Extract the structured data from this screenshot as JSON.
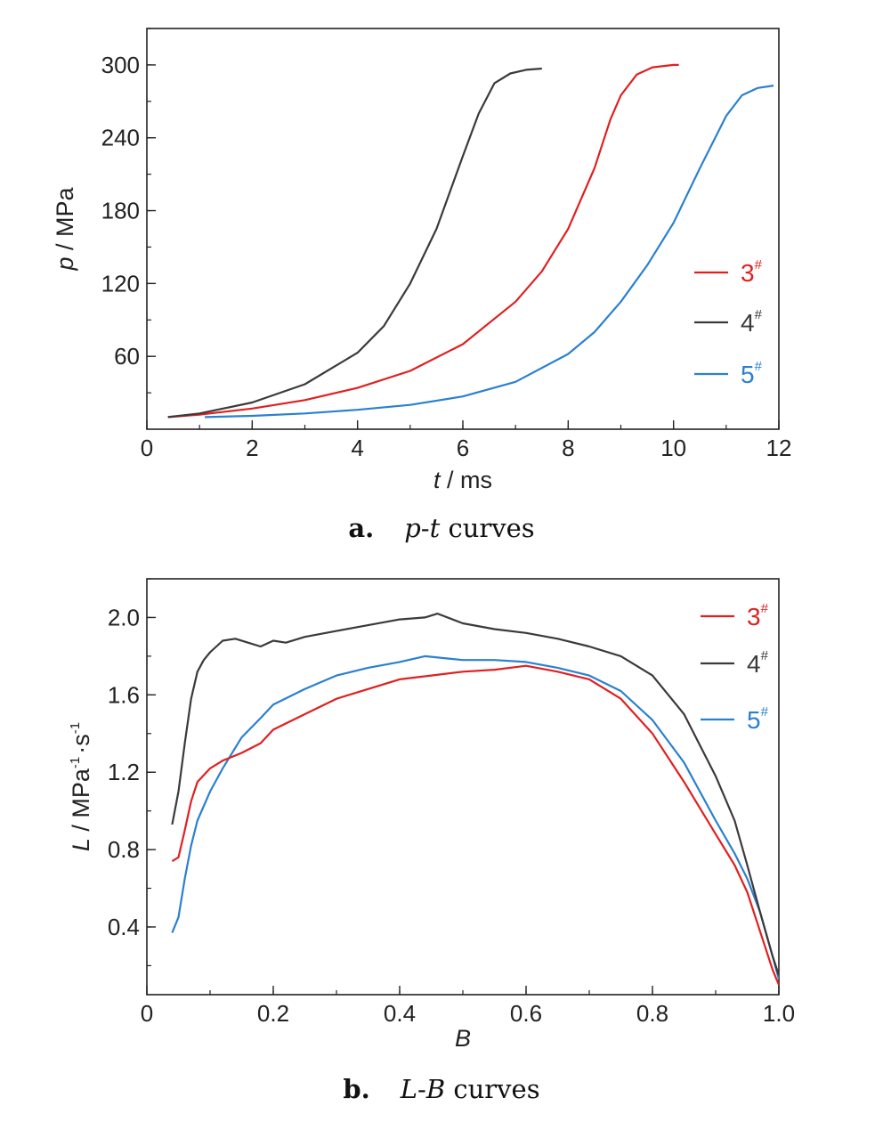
{
  "chart_data": [
    {
      "type": "line",
      "caption": {
        "letter": "a.",
        "var1": "p",
        "dash": "-",
        "var2": "t",
        "rest": " curves"
      },
      "xlabel": {
        "var": "t",
        "unit": " / ms"
      },
      "ylabel": {
        "var": "p",
        "unit": " / MPa"
      },
      "xlim": [
        0,
        12
      ],
      "ylim": [
        0,
        330
      ],
      "xticks": [
        0,
        2,
        4,
        6,
        8,
        10,
        12
      ],
      "yticks": [
        60,
        120,
        180,
        240,
        300
      ],
      "legend_position": "right",
      "series": [
        {
          "name": "3",
          "sup": "#",
          "color": "#e02020",
          "x": [
            0.4,
            1,
            2,
            3,
            4,
            5,
            6,
            7,
            7.5,
            8,
            8.5,
            8.8,
            9,
            9.3,
            9.6,
            10,
            10.1
          ],
          "y": [
            10,
            12,
            17,
            24,
            34,
            48,
            70,
            105,
            130,
            165,
            215,
            255,
            275,
            292,
            298,
            300,
            300
          ]
        },
        {
          "name": "4",
          "sup": "#",
          "color": "#3a3a3a",
          "x": [
            0.4,
            1,
            2,
            3,
            4,
            4.5,
            5,
            5.5,
            6,
            6.3,
            6.6,
            6.9,
            7.2,
            7.5
          ],
          "y": [
            10,
            13,
            22,
            37,
            63,
            85,
            120,
            165,
            225,
            260,
            285,
            293,
            296,
            297
          ]
        },
        {
          "name": "5",
          "sup": "#",
          "color": "#2a80d0",
          "x": [
            1.1,
            2,
            3,
            4,
            5,
            6,
            7,
            8,
            8.5,
            9,
            9.5,
            10,
            10.5,
            11,
            11.3,
            11.6,
            11.9
          ],
          "y": [
            10,
            11,
            13,
            16,
            20,
            27,
            39,
            62,
            80,
            105,
            135,
            170,
            215,
            258,
            275,
            281,
            283
          ]
        }
      ]
    },
    {
      "type": "line",
      "caption": {
        "letter": "b.",
        "var1": "L",
        "dash": "-",
        "var2": "B",
        "rest": " curves"
      },
      "xlabel": {
        "var": "B",
        "unit": ""
      },
      "ylabel": {
        "var": "L",
        "unit": " / MPa",
        "unit2": "·s",
        "sup1": "-1",
        "sup2": "-1"
      },
      "xlim": [
        0,
        1
      ],
      "ylim": [
        0.05,
        2.2
      ],
      "xticks": [
        0,
        0.2,
        0.4,
        0.6,
        0.8,
        1.0
      ],
      "xtick_labels": [
        "0",
        "0.2",
        "0.4",
        "0.6",
        "0.8",
        "1.0"
      ],
      "yticks": [
        0.4,
        0.8,
        1.2,
        1.6,
        2.0
      ],
      "ytick_labels": [
        "0.4",
        "0.8",
        "1.2",
        "1.6",
        "2.0"
      ],
      "legend_position": "top-right",
      "series": [
        {
          "name": "3",
          "sup": "#",
          "color": "#e02020",
          "x": [
            0.04,
            0.05,
            0.06,
            0.07,
            0.08,
            0.1,
            0.12,
            0.15,
            0.18,
            0.2,
            0.25,
            0.3,
            0.35,
            0.4,
            0.45,
            0.5,
            0.55,
            0.6,
            0.65,
            0.7,
            0.75,
            0.8,
            0.85,
            0.9,
            0.93,
            0.95,
            0.97,
            0.99,
            1.0
          ],
          "y": [
            0.74,
            0.76,
            0.9,
            1.05,
            1.15,
            1.22,
            1.26,
            1.3,
            1.35,
            1.42,
            1.5,
            1.58,
            1.63,
            1.68,
            1.7,
            1.72,
            1.73,
            1.75,
            1.72,
            1.68,
            1.58,
            1.4,
            1.15,
            0.88,
            0.72,
            0.58,
            0.38,
            0.18,
            0.1
          ]
        },
        {
          "name": "4",
          "sup": "#",
          "color": "#3a3a3a",
          "x": [
            0.04,
            0.05,
            0.06,
            0.07,
            0.08,
            0.09,
            0.1,
            0.12,
            0.14,
            0.16,
            0.18,
            0.2,
            0.22,
            0.25,
            0.3,
            0.35,
            0.4,
            0.44,
            0.46,
            0.5,
            0.55,
            0.6,
            0.65,
            0.7,
            0.75,
            0.8,
            0.85,
            0.9,
            0.93,
            0.95,
            0.97,
            0.99,
            1.0
          ],
          "y": [
            0.93,
            1.1,
            1.35,
            1.58,
            1.72,
            1.78,
            1.82,
            1.88,
            1.89,
            1.87,
            1.85,
            1.88,
            1.87,
            1.9,
            1.93,
            1.96,
            1.99,
            2.0,
            2.02,
            1.97,
            1.94,
            1.92,
            1.89,
            1.85,
            1.8,
            1.7,
            1.5,
            1.18,
            0.95,
            0.72,
            0.48,
            0.25,
            0.15
          ]
        },
        {
          "name": "5",
          "sup": "#",
          "color": "#2a80d0",
          "x": [
            0.04,
            0.05,
            0.06,
            0.07,
            0.08,
            0.1,
            0.12,
            0.15,
            0.18,
            0.2,
            0.25,
            0.3,
            0.35,
            0.4,
            0.44,
            0.5,
            0.55,
            0.6,
            0.65,
            0.7,
            0.75,
            0.8,
            0.85,
            0.9,
            0.93,
            0.95,
            0.97,
            0.99,
            1.0
          ],
          "y": [
            0.37,
            0.45,
            0.65,
            0.82,
            0.95,
            1.1,
            1.22,
            1.38,
            1.48,
            1.55,
            1.63,
            1.7,
            1.74,
            1.77,
            1.8,
            1.78,
            1.78,
            1.77,
            1.74,
            1.7,
            1.62,
            1.47,
            1.25,
            0.95,
            0.78,
            0.65,
            0.48,
            0.25,
            0.13
          ]
        }
      ]
    }
  ]
}
